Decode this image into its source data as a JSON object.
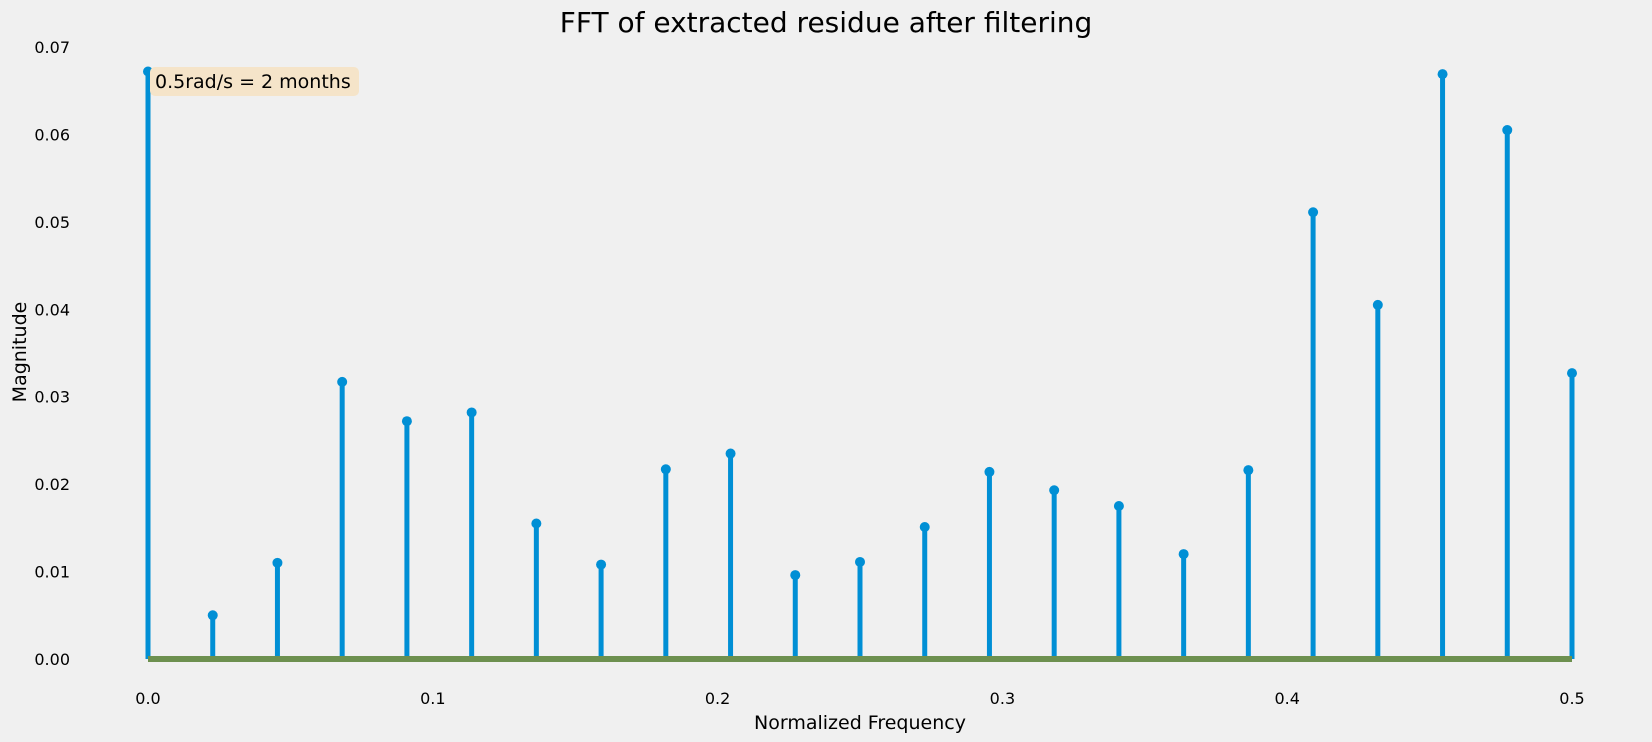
{
  "chart_data": {
    "type": "stem",
    "title": "FFT of extracted residue after filtering",
    "xlabel": "Normalized Frequency",
    "ylabel": "Magnitude",
    "xlim": [
      0.0,
      0.5
    ],
    "ylim": [
      0.0,
      0.07
    ],
    "xticks": [
      "0.0",
      "0.1",
      "0.2",
      "0.3",
      "0.4",
      "0.5"
    ],
    "yticks": [
      "0.00",
      "0.01",
      "0.02",
      "0.03",
      "0.04",
      "0.05",
      "0.06",
      "0.07"
    ],
    "grid": false,
    "annotation": "0.5rad/s = 2 months",
    "colors": {
      "stem": "#008fd5",
      "baseline": "#6d904f",
      "annotation_bg": "#f5e4c9",
      "background": "#f0f0f0"
    },
    "x": [
      0.0,
      0.02273,
      0.04545,
      0.06818,
      0.09091,
      0.11364,
      0.13636,
      0.15909,
      0.18182,
      0.20455,
      0.22727,
      0.25,
      0.27273,
      0.29545,
      0.31818,
      0.34091,
      0.36364,
      0.38636,
      0.40909,
      0.43182,
      0.45455,
      0.47727,
      0.5
    ],
    "values": [
      0.0672,
      0.005,
      0.011,
      0.0317,
      0.0272,
      0.0282,
      0.0155,
      0.0108,
      0.0217,
      0.0235,
      0.0096,
      0.0111,
      0.0151,
      0.0214,
      0.0193,
      0.0175,
      0.012,
      0.0216,
      0.0511,
      0.0405,
      0.0669,
      0.0605,
      0.0327
    ]
  }
}
